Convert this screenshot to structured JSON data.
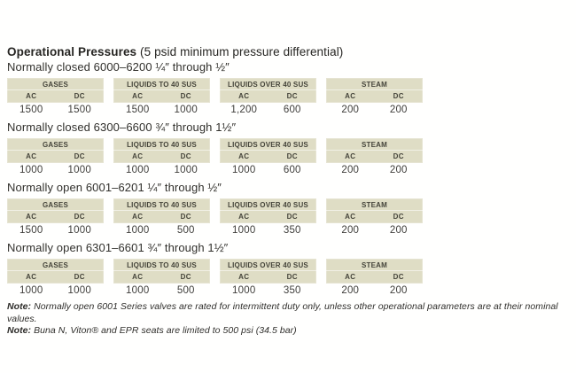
{
  "title": {
    "main": "Operational Pressures",
    "sub": " (5 psid minimum pressure differential)"
  },
  "labels": {
    "ac": "AC",
    "dc": "DC"
  },
  "colors": {
    "header_bg": "#dfddc5",
    "header_text": "#45443a",
    "body_text": "#3e3d3a"
  },
  "sections": [
    {
      "heading": "Normally closed 6000–6200 ¼″ through ½″",
      "groups": [
        {
          "name": "GASES",
          "ac": "1500",
          "dc": "1500"
        },
        {
          "name": "LIQUIDS TO 40 SUS",
          "ac": "1500",
          "dc": "1000"
        },
        {
          "name": "LIQUIDS OVER 40 SUS",
          "ac": "1,200",
          "dc": "600"
        },
        {
          "name": "STEAM",
          "ac": "200",
          "dc": "200"
        }
      ]
    },
    {
      "heading": "Normally closed 6300–6600 ¾″ through 1½″",
      "groups": [
        {
          "name": "GASES",
          "ac": "1000",
          "dc": "1000"
        },
        {
          "name": "LIQUIDS TO 40 SUS",
          "ac": "1000",
          "dc": "1000"
        },
        {
          "name": "LIQUIDS OVER 40 SUS",
          "ac": "1000",
          "dc": "600"
        },
        {
          "name": "STEAM",
          "ac": "200",
          "dc": "200"
        }
      ]
    },
    {
      "heading": "Normally open 6001–6201 ¼″ through ½″",
      "groups": [
        {
          "name": "GASES",
          "ac": "1500",
          "dc": "1000"
        },
        {
          "name": "LIQUIDS TO 40 SUS",
          "ac": "1000",
          "dc": "500"
        },
        {
          "name": "LIQUIDS OVER 40 SUS",
          "ac": "1000",
          "dc": "350"
        },
        {
          "name": "STEAM",
          "ac": "200",
          "dc": "200"
        }
      ]
    },
    {
      "heading": "Normally open 6301–6601 ¾″ through 1½″",
      "groups": [
        {
          "name": "GASES",
          "ac": "1000",
          "dc": "1000"
        },
        {
          "name": "LIQUIDS TO 40 SUS",
          "ac": "1000",
          "dc": "500"
        },
        {
          "name": "LIQUIDS OVER 40 SUS",
          "ac": "1000",
          "dc": "350"
        },
        {
          "name": "STEAM",
          "ac": "200",
          "dc": "200"
        }
      ]
    }
  ],
  "notes": [
    {
      "label": "Note:",
      "text": "Normally open 6001 Series valves are rated for intermittent duty only, unless other operational parameters are at their nominal values."
    },
    {
      "label": "Note:",
      "text": "Buna N, Viton® and EPR seats are limited to 500 psi (34.5 bar)"
    }
  ]
}
